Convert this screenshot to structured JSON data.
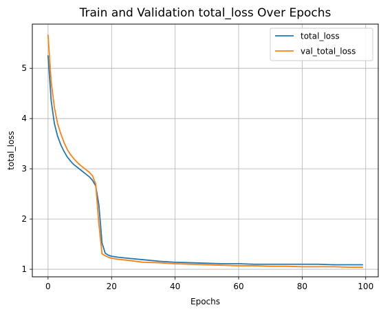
{
  "chart_data": {
    "type": "line",
    "title": "Train and Validation total_loss Over Epochs",
    "xlabel": "Epochs",
    "ylabel": "total_loss",
    "xlim": [
      -4.95,
      103.95
    ],
    "ylim": [
      0.85,
      5.88
    ],
    "xticks": [
      0,
      20,
      40,
      60,
      80,
      100
    ],
    "yticks": [
      1,
      2,
      3,
      4,
      5
    ],
    "grid": true,
    "legend_position": "top-right",
    "series": [
      {
        "name": "total_loss",
        "color": "#1f77b4",
        "x": [
          0,
          1,
          2,
          3,
          4,
          5,
          6,
          7,
          8,
          9,
          10,
          11,
          12,
          13,
          14,
          15,
          16,
          17,
          18,
          19,
          20,
          22,
          25,
          30,
          35,
          40,
          45,
          50,
          55,
          60,
          65,
          70,
          75,
          80,
          85,
          90,
          95,
          99
        ],
        "y": [
          5.25,
          4.35,
          3.9,
          3.65,
          3.48,
          3.35,
          3.24,
          3.16,
          3.09,
          3.04,
          2.99,
          2.94,
          2.89,
          2.84,
          2.77,
          2.66,
          2.28,
          1.52,
          1.32,
          1.28,
          1.26,
          1.24,
          1.22,
          1.19,
          1.16,
          1.14,
          1.13,
          1.12,
          1.11,
          1.11,
          1.1,
          1.1,
          1.1,
          1.1,
          1.1,
          1.09,
          1.09,
          1.09
        ]
      },
      {
        "name": "val_total_loss",
        "color": "#ff7f0e",
        "x": [
          0,
          1,
          2,
          3,
          4,
          5,
          6,
          7,
          8,
          9,
          10,
          11,
          12,
          13,
          14,
          15,
          16,
          17,
          18,
          19,
          20,
          22,
          25,
          30,
          35,
          40,
          45,
          50,
          55,
          60,
          65,
          70,
          75,
          80,
          85,
          90,
          95,
          99
        ],
        "y": [
          5.66,
          4.72,
          4.22,
          3.9,
          3.7,
          3.53,
          3.39,
          3.29,
          3.21,
          3.14,
          3.08,
          3.03,
          2.98,
          2.93,
          2.86,
          2.7,
          1.9,
          1.31,
          1.27,
          1.24,
          1.22,
          1.2,
          1.18,
          1.14,
          1.13,
          1.11,
          1.1,
          1.09,
          1.08,
          1.07,
          1.07,
          1.06,
          1.06,
          1.05,
          1.05,
          1.05,
          1.04,
          1.04
        ]
      }
    ]
  }
}
